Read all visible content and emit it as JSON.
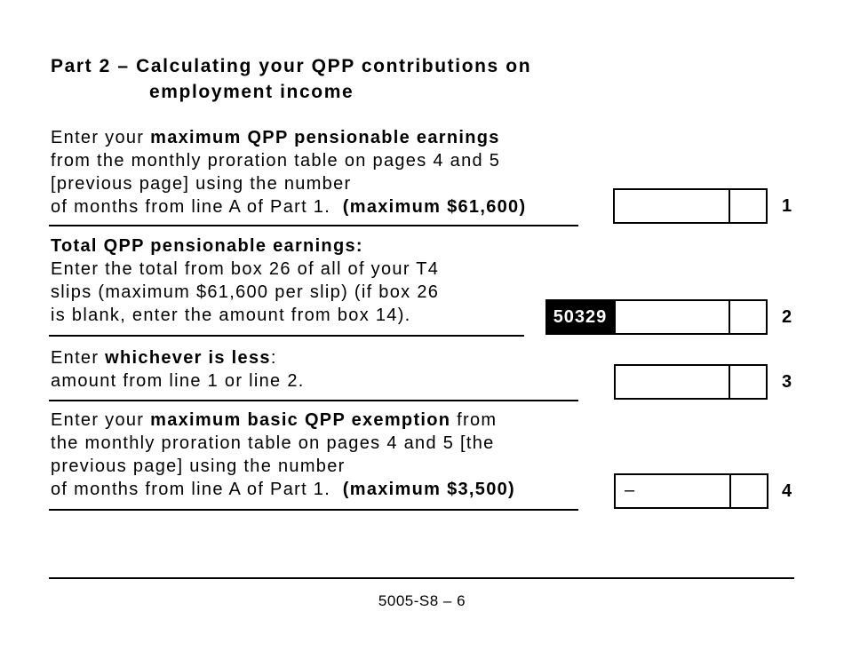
{
  "part_title": [
    "Part 2 – Calculating your QPP contributions on",
    "employment income"
  ],
  "lines": [
    {
      "number": "1",
      "rows": [
        [
          {
            "plain": "Enter your "
          },
          {
            "bold": "maximum QPP pensionable earnings"
          }
        ],
        [
          {
            "plain": "from the monthly proration table on pages 4 and 5"
          }
        ],
        [
          {
            "plain": "[previous page] using the number"
          }
        ],
        [
          {
            "plain": "of months from line A of Part 1.  "
          },
          {
            "bold": "(maximum $61,600)"
          }
        ]
      ]
    },
    {
      "number": "2",
      "code": "50329",
      "rows": [
        [
          {
            "bold": "Total QPP pensionable earnings:"
          }
        ],
        [
          {
            "plain": "Enter the total from box 26 of all of your T4"
          }
        ],
        [
          {
            "plain": "slips (maximum $61,600 per slip) (if box 26"
          }
        ],
        [
          {
            "plain": "is blank, enter the amount from box 14)."
          }
        ]
      ]
    },
    {
      "number": "3",
      "rows": [
        [
          {
            "plain": "Enter "
          },
          {
            "bold": "whichever is less"
          },
          {
            "plain": ":"
          }
        ],
        [
          {
            "plain": "amount from line 1 or line 2."
          }
        ]
      ]
    },
    {
      "number": "4",
      "sign": "–",
      "rows": [
        [
          {
            "plain": "Enter your "
          },
          {
            "bold": "maximum basic QPP exemption"
          },
          {
            "plain": " from"
          }
        ],
        [
          {
            "plain": "the monthly proration table on pages 4 and 5 [the"
          }
        ],
        [
          {
            "plain": "previous page] using the number"
          }
        ],
        [
          {
            "plain": "of months from line A of Part 1.  "
          },
          {
            "bold": "(maximum $3,500)"
          }
        ]
      ]
    }
  ],
  "footer": "5005-S8 – 6"
}
